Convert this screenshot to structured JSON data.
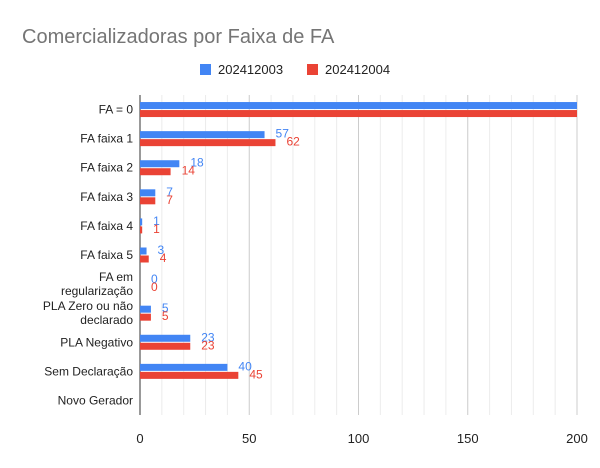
{
  "chart_data": {
    "type": "bar",
    "orientation": "horizontal",
    "title": "Comercializadoras por Faixa de FA",
    "categories": [
      [
        "FA = 0"
      ],
      [
        "FA faixa 1"
      ],
      [
        "FA faixa 2"
      ],
      [
        "FA faixa 3"
      ],
      [
        "FA faixa 4"
      ],
      [
        "FA faixa 5"
      ],
      [
        "FA em",
        "regularização"
      ],
      [
        "PLA Zero ou não",
        "declarado"
      ],
      [
        "PLA Negativo"
      ],
      [
        "Sem Declaração"
      ],
      [
        "Novo Gerador"
      ]
    ],
    "series": [
      {
        "name": "202412003",
        "color": "#4285f4",
        "values": [
          200,
          57,
          18,
          7,
          1,
          3,
          0,
          5,
          23,
          40,
          null
        ],
        "labels": [
          "",
          "57",
          "18",
          "7",
          "1",
          "3",
          "0",
          "5",
          "23",
          "40",
          ""
        ]
      },
      {
        "name": "202412004",
        "color": "#ea4335",
        "values": [
          200,
          62,
          14,
          7,
          1,
          4,
          0,
          5,
          23,
          45,
          null
        ],
        "labels": [
          "",
          "62",
          "14",
          "7",
          "1",
          "4",
          "0",
          "5",
          "23",
          "45",
          ""
        ]
      }
    ],
    "xlim": [
      0,
      200
    ],
    "xticks": [
      "0",
      "50",
      "100",
      "150",
      "200"
    ],
    "grid": true,
    "legend_position": "top"
  }
}
